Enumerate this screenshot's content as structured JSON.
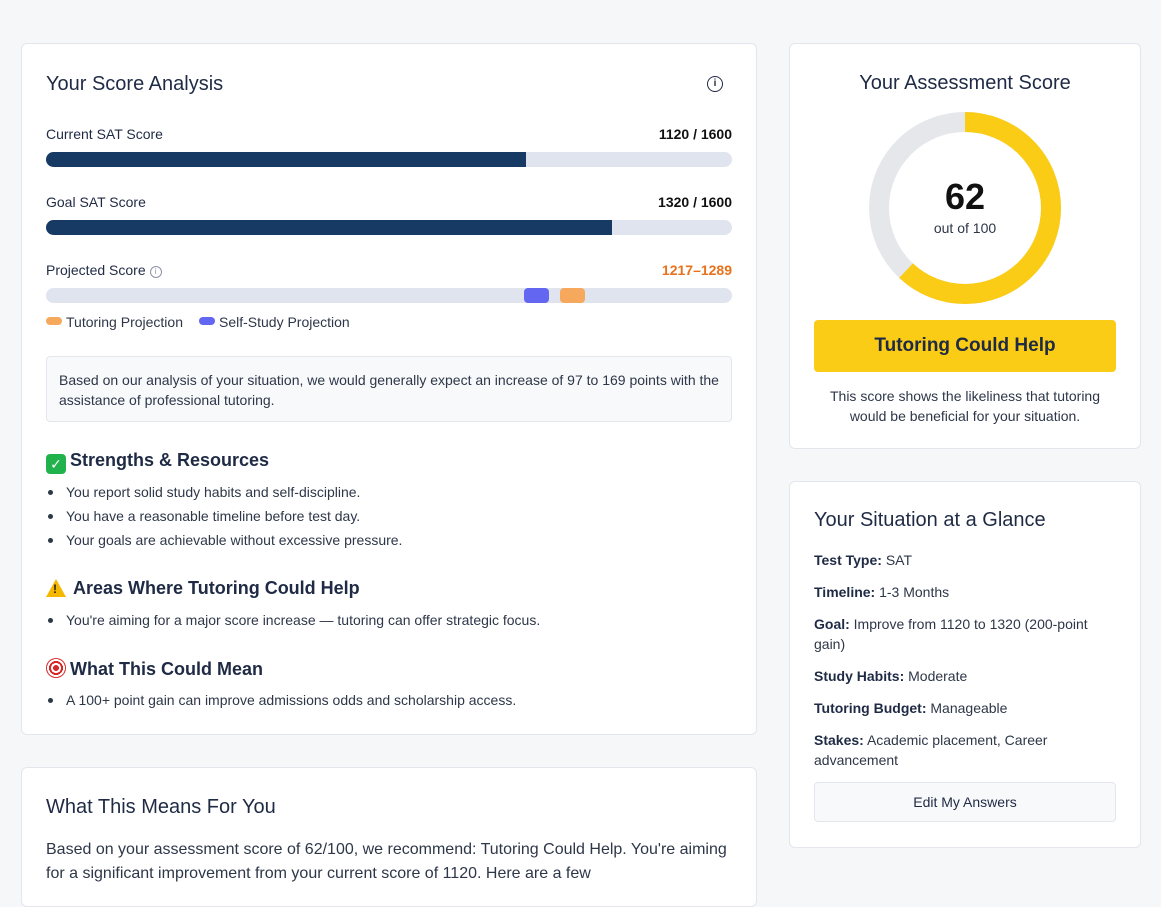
{
  "score_analysis": {
    "title": "Your Score Analysis",
    "info_icon": "info-icon",
    "current": {
      "label": "Current SAT Score",
      "value_text": "1120 / 1600",
      "fraction": 0.7
    },
    "goal": {
      "label": "Goal SAT Score",
      "value_text": "1320 / 1600",
      "fraction": 0.825
    },
    "projected": {
      "label": "Projected Score",
      "range_text": "1217–1289",
      "self_study_fraction": 0.715,
      "tutoring_fraction": 0.767
    },
    "legend": {
      "tutoring": "Tutoring Projection",
      "self_study": "Self-Study Projection"
    },
    "notice": "Based on our analysis of your situation, we would generally expect an increase of 97 to 169 points with the assistance of professional tutoring.",
    "strengths": {
      "heading": "Strengths & Resources",
      "items": [
        "You report solid study habits and self-discipline.",
        "You have a reasonable timeline before test day.",
        "Your goals are achievable without excessive pressure."
      ]
    },
    "areas": {
      "heading": "Areas Where Tutoring Could Help",
      "items": [
        "You're aiming for a major score increase — tutoring can offer strategic focus."
      ]
    },
    "meaning": {
      "heading": "What This Could Mean",
      "items": [
        "A 100+ point gain can improve admissions odds and scholarship access."
      ]
    }
  },
  "means_for_you": {
    "title": "What This Means For You",
    "body": "Based on your assessment score of 62/100, we recommend: Tutoring Could Help. You're aiming for a significant improvement from your current score of 1120. Here are a few"
  },
  "assessment": {
    "title": "Your Assessment Score",
    "score": "62",
    "score_value": 62,
    "out_of": "out of 100",
    "verdict": "Tutoring Could Help",
    "description": "This score shows the likeliness that tutoring would be beneficial for your situation."
  },
  "glance": {
    "title": "Your Situation at a Glance",
    "items": [
      {
        "label": "Test Type:",
        "value": "SAT"
      },
      {
        "label": "Timeline:",
        "value": "1-3 Months"
      },
      {
        "label": "Goal:",
        "value": "Improve from 1120 to 1320 (200-point gain)"
      },
      {
        "label": "Study Habits:",
        "value": "Moderate"
      },
      {
        "label": "Tutoring Budget:",
        "value": "Manageable"
      },
      {
        "label": "Stakes:",
        "value": "Academic placement, Career advancement"
      }
    ],
    "edit_button": "Edit My Answers"
  },
  "colors": {
    "navy": "#173a64",
    "track": "#dfe4ef",
    "self_study": "#6366f1",
    "tutoring": "#f6a95d",
    "accent_orange": "#e8721c",
    "gauge_yellow": "#facc15",
    "gauge_gray": "#e5e7eb"
  }
}
